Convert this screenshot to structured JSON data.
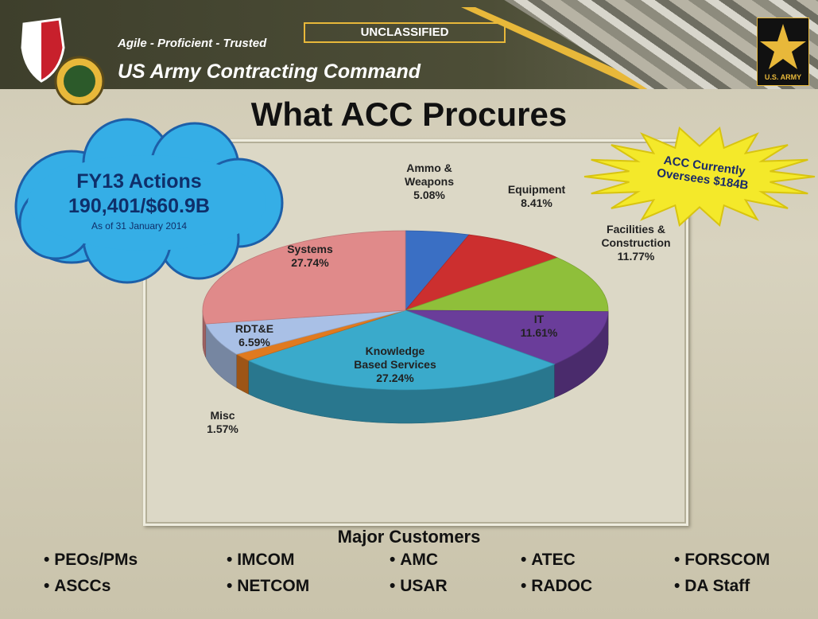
{
  "header": {
    "tagline": "Agile - Proficient - Trusted",
    "organization": "US Army Contracting Command",
    "classification": "UNCLASSIFIED",
    "logo_text": "U.S. ARMY"
  },
  "chart_data": {
    "type": "pie",
    "title": "What ACC Procures",
    "categories": [
      "Ammo & Weapons",
      "Equipment",
      "Facilities & Construction",
      "IT",
      "Knowledge Based Services",
      "Misc",
      "RDT&E",
      "Systems"
    ],
    "values": [
      5.08,
      8.41,
      11.77,
      11.61,
      27.24,
      1.57,
      6.59,
      27.74
    ],
    "value_labels": [
      "5.08%",
      "8.41%",
      "11.77%",
      "11.61%",
      "27.24%",
      "1.57%",
      "6.59%",
      "27.74%"
    ],
    "colors": [
      "#3a6fc4",
      "#cc2f2f",
      "#8fbf3a",
      "#6a3d9a",
      "#3aaacb",
      "#e07a1f",
      "#a9c0e6",
      "#e08a8a"
    ]
  },
  "callouts": {
    "cloud": {
      "title": "FY13 Actions",
      "figures": "190,401/$60.9B",
      "note": "As of 31 January 2014"
    },
    "starburst": "ACC Currently Oversees $184B"
  },
  "customers": {
    "title": "Major Customers",
    "columns": [
      [
        "PEOs/PMs",
        "ASCCs"
      ],
      [
        "IMCOM",
        "NETCOM"
      ],
      [
        "AMC",
        "USAR"
      ],
      [
        "ATEC",
        "RADOC"
      ],
      [
        "FORSCOM",
        "DA Staff"
      ]
    ]
  }
}
